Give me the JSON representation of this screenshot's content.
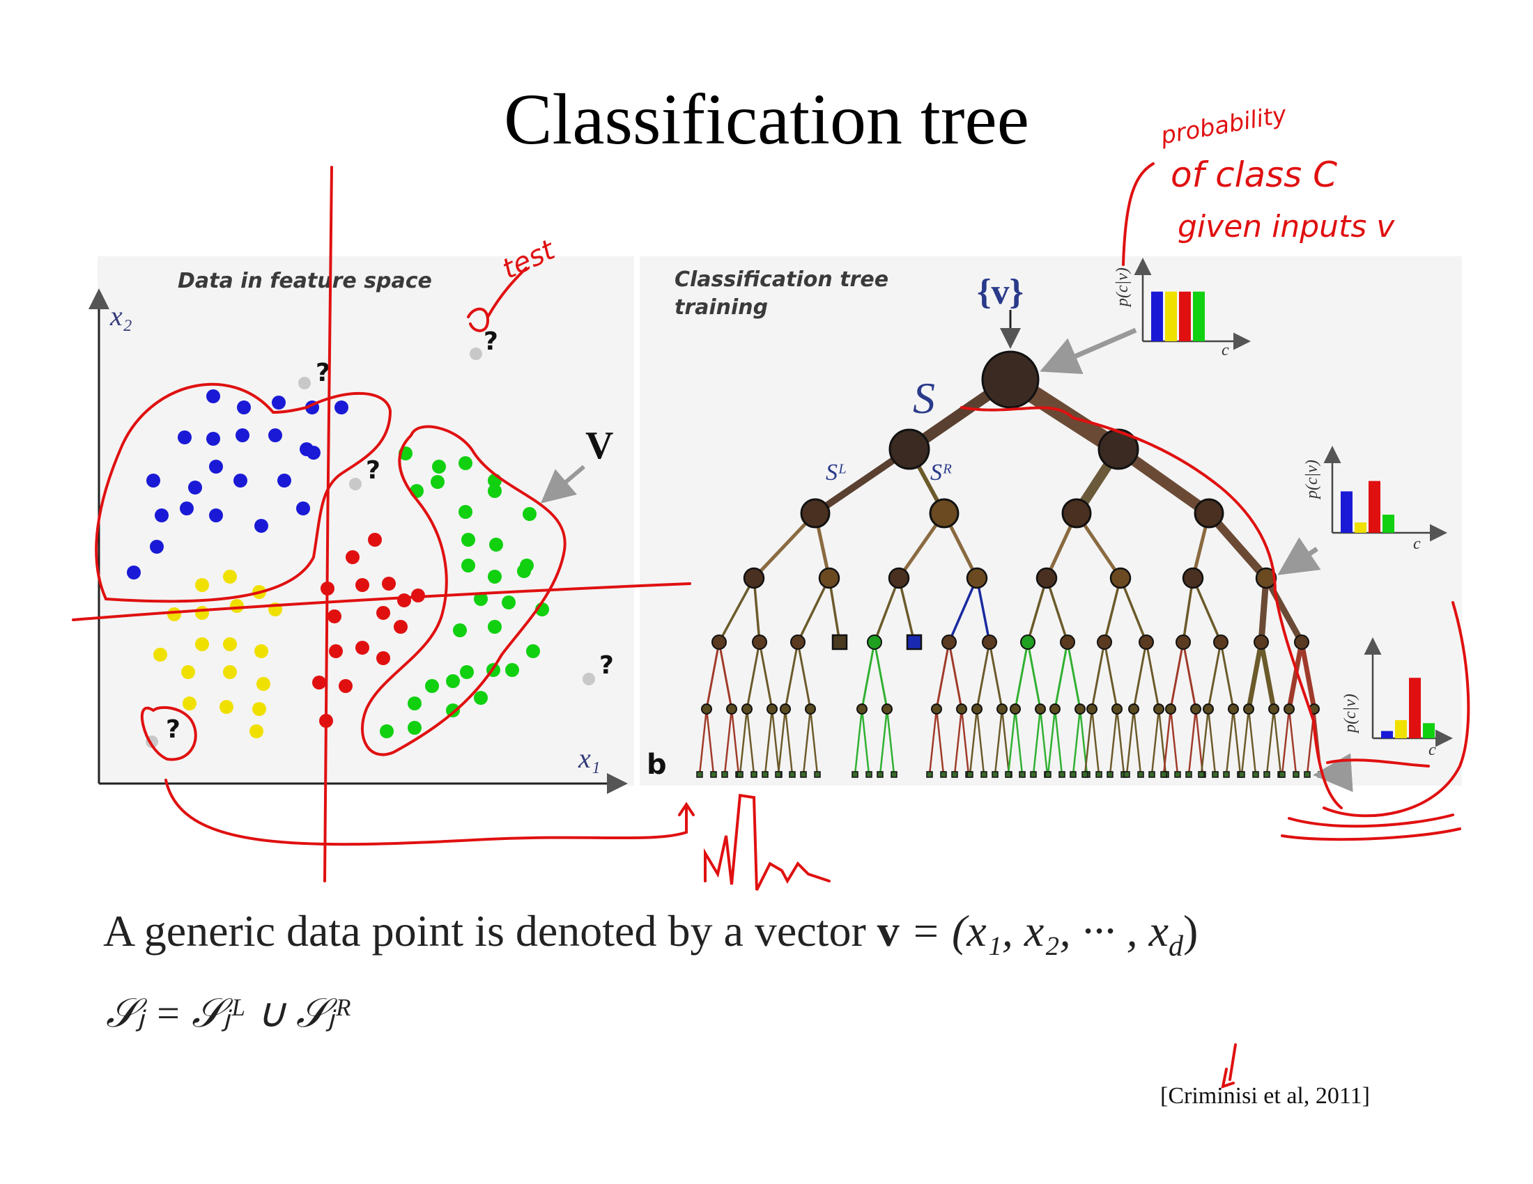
{
  "slide": {
    "title": "Classification tree"
  },
  "left_figure": {
    "panel_title": "Data in feature space",
    "x_axis_label": "x₁",
    "y_axis_label": "x₂",
    "point_label": "V",
    "unknown_marker": "?",
    "class_colors": {
      "blue": "#1a1ad6",
      "yellow": "#f0e000",
      "red": "#e01010",
      "green": "#10d010",
      "unknown": "#c8c8c8"
    }
  },
  "right_figure": {
    "panel_title_line1": "Classification tree",
    "panel_title_line2": "training",
    "root_label": "{v}",
    "split_label": "S",
    "left_child_label": "Sᴸ",
    "right_child_label": "Sᴿ",
    "subfigure_label": "b",
    "histogram_y_label": "p(c|v)",
    "histogram_x_label": "c",
    "histograms": [
      {
        "values": [
          1.0,
          1.0,
          1.0,
          1.0
        ]
      },
      {
        "values": [
          0.8,
          0.2,
          1.0,
          0.35
        ]
      },
      {
        "values": [
          0.12,
          0.3,
          1.0,
          0.25
        ]
      }
    ]
  },
  "body": {
    "formula_text": "A generic data point is denoted by a vector ",
    "vector_symbol": "v",
    "vector_expression": " = (x₁, x₂, ··· , x",
    "vector_subscript_d": "d",
    "set_equation": "𝒮ⱼ = 𝒮ⱼᴸ ∪ 𝒮ⱼᴿ",
    "citation": "[Criminisi et al, 2011]"
  },
  "annotations": {
    "test_note": "test",
    "probability_line1": "probability",
    "probability_line2": "of class C",
    "probability_line3": "given inputs v",
    "ink_color": "#e01010"
  }
}
